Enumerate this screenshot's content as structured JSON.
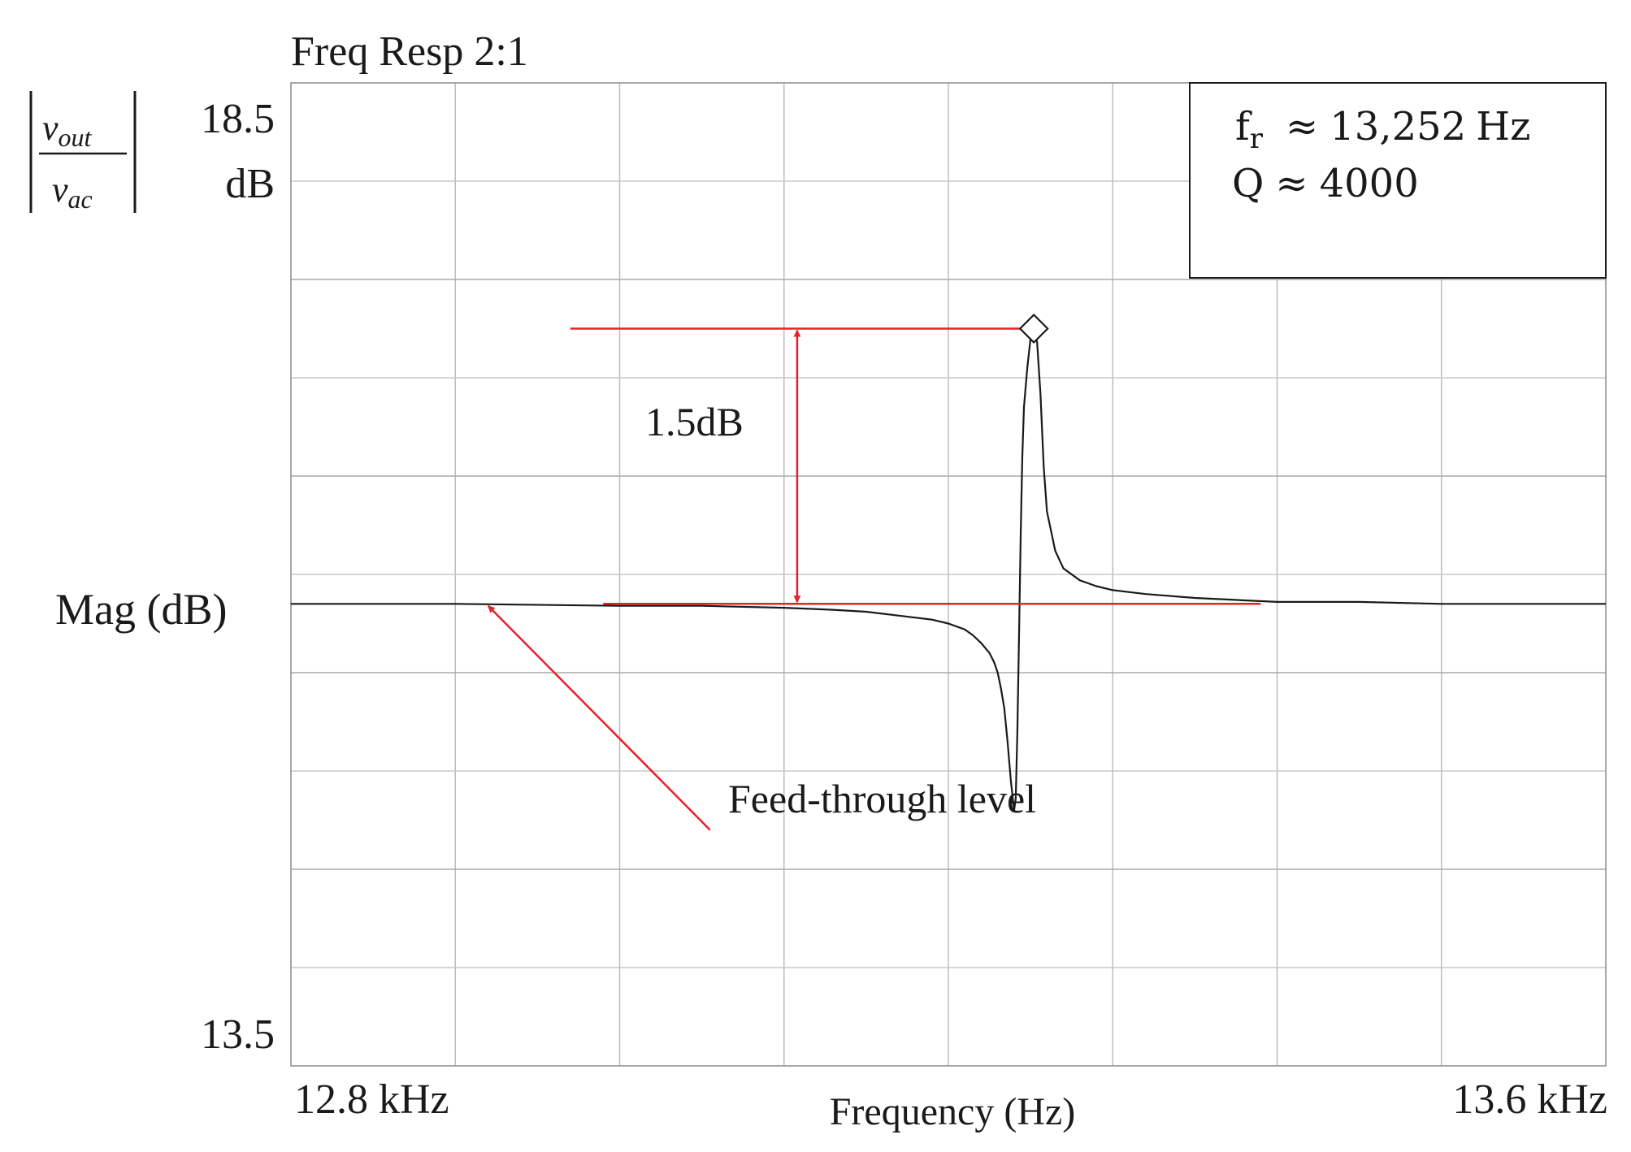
{
  "chart_data": {
    "type": "line",
    "title": "Freq Resp 2:1",
    "xlabel": "Frequency (Hz)",
    "ylabel": "Mag (dB)",
    "ylabel_fraction": {
      "numerator": "v",
      "numerator_sub": "out",
      "denominator": "v",
      "denominator_sub": "ac"
    },
    "x_unit": "kHz",
    "xlim": [
      12.8,
      13.6
    ],
    "ylim": [
      13.5,
      18.5
    ],
    "x_tick_labels": [
      "12.8 kHz",
      "13.6 kHz"
    ],
    "y_tick_labels": {
      "top": "18.5",
      "top_unit": "dB",
      "bottom": "13.5"
    },
    "grid": true,
    "major_divisions": {
      "x": 8,
      "y": 10
    },
    "series": [
      {
        "color": "#1a1a1a",
        "feedthrough_db": 15.85,
        "x": [
          12.8,
          12.9,
          13.0,
          13.05,
          13.1,
          13.13,
          13.15,
          13.17,
          13.19,
          13.2,
          13.21,
          13.215,
          13.22,
          13.225,
          13.228,
          13.23,
          13.232,
          13.234,
          13.236,
          13.238,
          13.24,
          13.241,
          13.242,
          13.243,
          13.244,
          13.245,
          13.246,
          13.248,
          13.25,
          13.252,
          13.254,
          13.256,
          13.258,
          13.26,
          13.265,
          13.27,
          13.28,
          13.29,
          13.3,
          13.32,
          13.35,
          13.4,
          13.45,
          13.5,
          13.6
        ],
        "y": [
          15.85,
          15.85,
          15.84,
          15.84,
          15.83,
          15.82,
          15.81,
          15.79,
          15.77,
          15.75,
          15.72,
          15.69,
          15.65,
          15.6,
          15.55,
          15.5,
          15.42,
          15.32,
          15.15,
          14.95,
          14.8,
          14.86,
          15.2,
          15.7,
          16.2,
          16.6,
          16.85,
          17.05,
          17.2,
          17.25,
          17.18,
          16.92,
          16.55,
          16.32,
          16.12,
          16.03,
          15.97,
          15.94,
          15.92,
          15.9,
          15.88,
          15.86,
          15.86,
          15.85,
          15.85
        ]
      }
    ],
    "annotations": {
      "legend_lines": [
        {
          "symbol": "f",
          "sub": "r",
          "relation": "≈",
          "value": "13,252",
          "unit": "Hz"
        },
        {
          "symbol": "Q",
          "relation": "≈",
          "value": "4000"
        }
      ],
      "legend_position": "top-right",
      "peak_marker": {
        "x": 13.252,
        "y": 17.25,
        "shape": "diamond"
      },
      "delta_label": "1.5dB",
      "delta_line_color": "#e8202a",
      "upper_ref_db": 17.25,
      "upper_ref_x_range": [
        12.97,
        13.252
      ],
      "lower_ref_db": 15.85,
      "lower_ref_x_range": [
        12.99,
        13.39
      ],
      "dimension_arrow_x": 13.108,
      "feedthrough_label": "Feed-through level",
      "feedthrough_arrow": {
        "from": [
          13.055,
          14.7
        ],
        "to": [
          12.92,
          15.84
        ]
      }
    }
  }
}
